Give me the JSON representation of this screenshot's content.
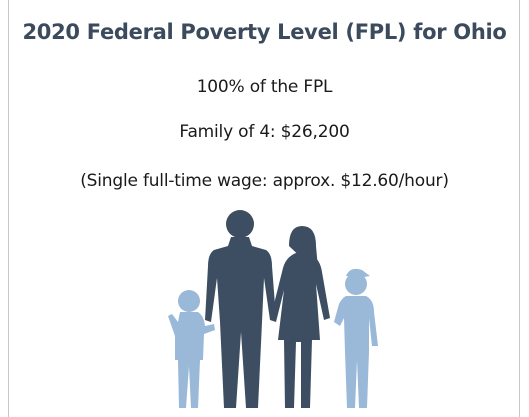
{
  "title": "2020 Federal Poverty Level (FPL) for Ohio",
  "lines": [
    "100% of the FPL",
    "Family of 4: $26,200",
    "(Single full-time wage: approx. $12.60/hour)"
  ]
}
